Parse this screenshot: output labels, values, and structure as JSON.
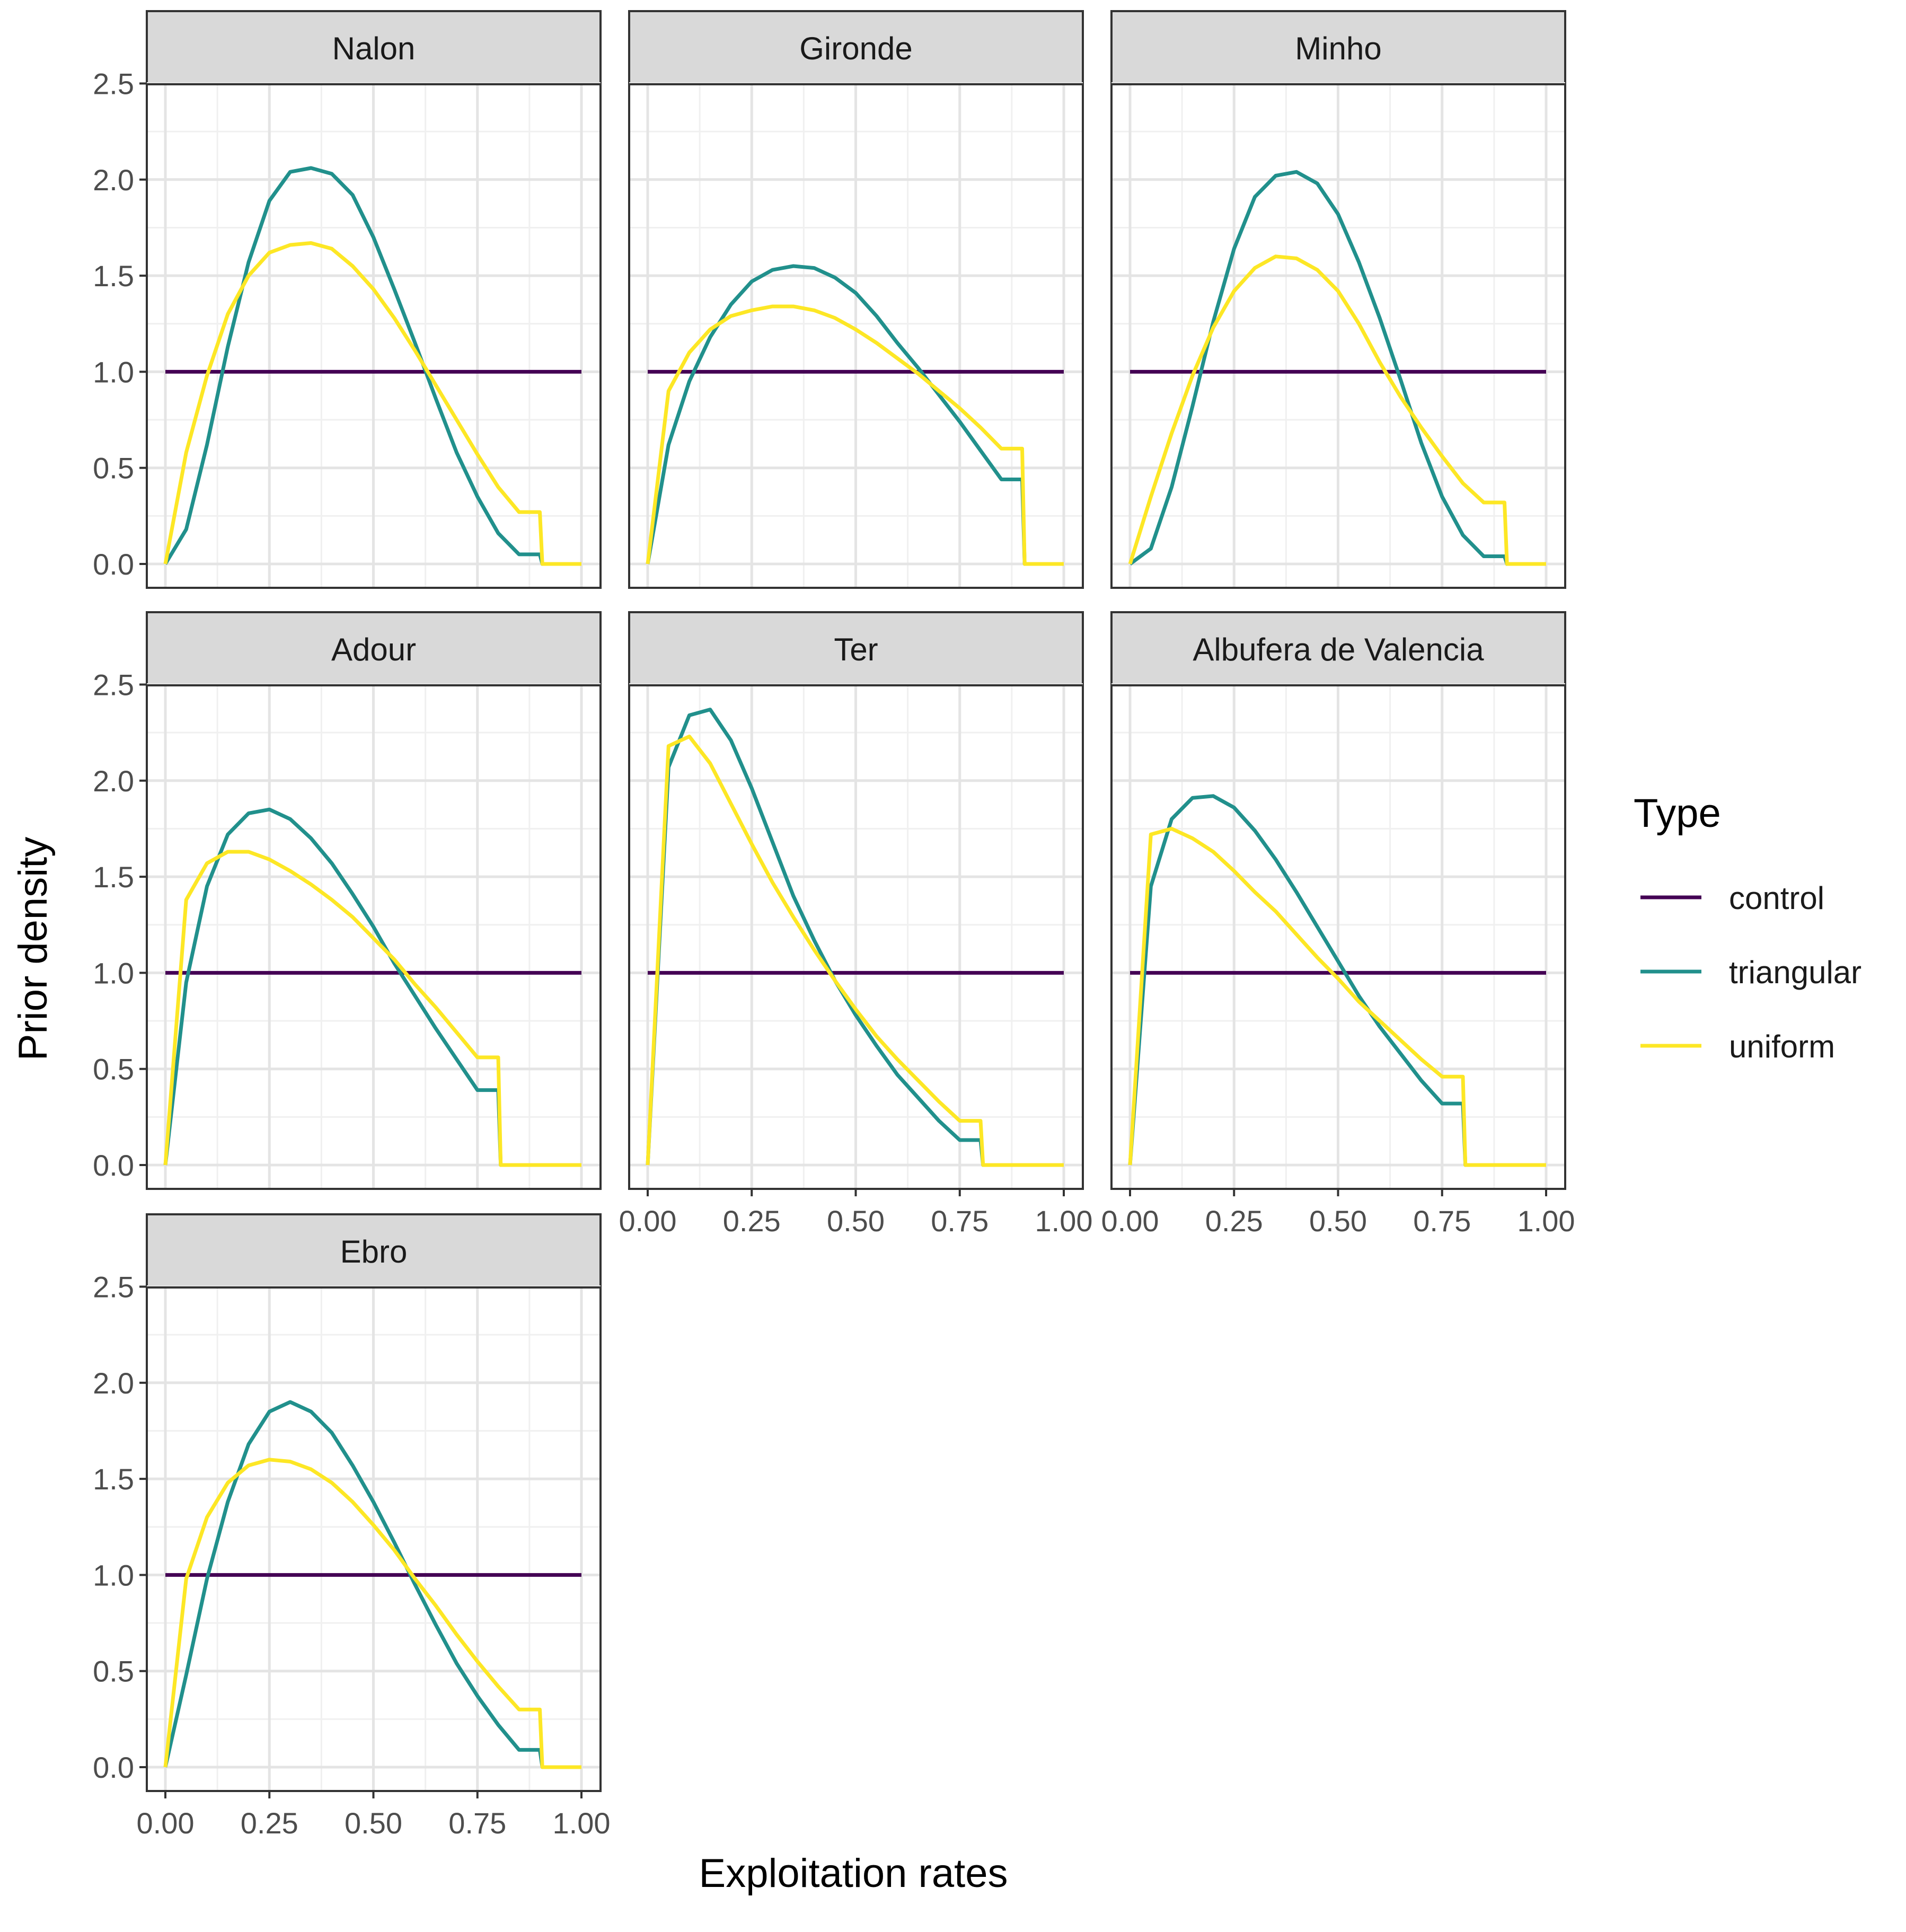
{
  "chart_data": {
    "type": "line",
    "xlabel": "Exploitation rates",
    "ylabel": "Prior density",
    "xlim": [
      0,
      1
    ],
    "ylim": [
      0,
      2.5
    ],
    "x_ticks": [
      "0.00",
      "0.25",
      "0.50",
      "0.75",
      "1.00"
    ],
    "y_ticks": [
      "0.0",
      "0.5",
      "1.0",
      "1.5",
      "2.0",
      "2.5"
    ],
    "grid": true,
    "legend": {
      "title": "Type",
      "position": "right",
      "entries": [
        "control",
        "triangular",
        "uniform"
      ]
    },
    "colors": {
      "control": "#440154",
      "triangular": "#21908C",
      "uniform": "#FDE725"
    },
    "x": [
      0,
      0.05,
      0.1,
      0.15,
      0.2,
      0.25,
      0.3,
      0.35,
      0.4,
      0.45,
      0.5,
      0.55,
      0.6,
      0.65,
      0.7,
      0.75,
      0.8,
      0.85,
      0.9,
      0.95,
      1.0
    ],
    "panels": [
      {
        "title": "Nalon",
        "cutoff": 0.9,
        "series": [
          {
            "name": "control",
            "values": [
              1,
              1,
              1,
              1,
              1,
              1,
              1,
              1,
              1,
              1,
              1,
              1,
              1,
              1,
              1,
              1,
              1,
              1,
              1,
              1,
              1
            ]
          },
          {
            "name": "triangular",
            "values": [
              0,
              0.18,
              0.62,
              1.13,
              1.57,
              1.89,
              2.04,
              2.06,
              2.03,
              1.92,
              1.7,
              1.43,
              1.15,
              0.86,
              0.58,
              0.35,
              0.16,
              0.05,
              0.01,
              0,
              0
            ]
          },
          {
            "name": "uniform",
            "values": [
              0,
              0.58,
              0.98,
              1.3,
              1.5,
              1.62,
              1.66,
              1.67,
              1.64,
              1.55,
              1.43,
              1.28,
              1.11,
              0.93,
              0.75,
              0.57,
              0.4,
              0.27,
              0.15,
              0,
              0
            ]
          }
        ]
      },
      {
        "title": "Gironde",
        "cutoff": 0.9,
        "series": [
          {
            "name": "control",
            "values": [
              1,
              1,
              1,
              1,
              1,
              1,
              1,
              1,
              1,
              1,
              1,
              1,
              1,
              1,
              1,
              1,
              1,
              1,
              1,
              1,
              1
            ]
          },
          {
            "name": "triangular",
            "values": [
              0,
              0.62,
              0.95,
              1.18,
              1.35,
              1.47,
              1.53,
              1.55,
              1.54,
              1.49,
              1.41,
              1.29,
              1.15,
              1.02,
              0.88,
              0.74,
              0.59,
              0.44,
              0.28,
              0,
              0
            ]
          },
          {
            "name": "uniform",
            "values": [
              0,
              0.9,
              1.1,
              1.22,
              1.29,
              1.32,
              1.34,
              1.34,
              1.32,
              1.28,
              1.22,
              1.15,
              1.07,
              0.99,
              0.9,
              0.81,
              0.71,
              0.6,
              0.48,
              0,
              0
            ]
          }
        ]
      },
      {
        "title": "Minho",
        "cutoff": 0.9,
        "series": [
          {
            "name": "control",
            "values": [
              1,
              1,
              1,
              1,
              1,
              1,
              1,
              1,
              1,
              1,
              1,
              1,
              1,
              1,
              1,
              1,
              1,
              1,
              1,
              1,
              1
            ]
          },
          {
            "name": "triangular",
            "values": [
              0,
              0.08,
              0.4,
              0.82,
              1.26,
              1.64,
              1.91,
              2.02,
              2.04,
              1.98,
              1.82,
              1.57,
              1.28,
              0.96,
              0.63,
              0.35,
              0.15,
              0.04,
              0.01,
              0,
              0
            ]
          },
          {
            "name": "uniform",
            "values": [
              0,
              0.35,
              0.68,
              0.98,
              1.23,
              1.42,
              1.54,
              1.6,
              1.59,
              1.53,
              1.42,
              1.25,
              1.05,
              0.87,
              0.71,
              0.56,
              0.42,
              0.32,
              0.26,
              0,
              0
            ]
          }
        ]
      },
      {
        "title": "Adour",
        "cutoff": 0.8,
        "series": [
          {
            "name": "control",
            "values": [
              1,
              1,
              1,
              1,
              1,
              1,
              1,
              1,
              1,
              1,
              1,
              1,
              1,
              1,
              1,
              1,
              1,
              1,
              1,
              1,
              1
            ]
          },
          {
            "name": "triangular",
            "values": [
              0,
              0.95,
              1.45,
              1.72,
              1.83,
              1.85,
              1.8,
              1.7,
              1.57,
              1.41,
              1.24,
              1.05,
              0.88,
              0.71,
              0.55,
              0.39,
              0.25,
              0,
              0,
              0,
              0
            ]
          },
          {
            "name": "uniform",
            "values": [
              0,
              1.38,
              1.57,
              1.63,
              1.63,
              1.59,
              1.53,
              1.46,
              1.38,
              1.29,
              1.18,
              1.07,
              0.94,
              0.82,
              0.69,
              0.56,
              0.42,
              0,
              0,
              0,
              0
            ]
          }
        ]
      },
      {
        "title": "Ter",
        "cutoff": 0.8,
        "series": [
          {
            "name": "control",
            "values": [
              1,
              1,
              1,
              1,
              1,
              1,
              1,
              1,
              1,
              1,
              1,
              1,
              1,
              1,
              1,
              1,
              1,
              1,
              1,
              1,
              1
            ]
          },
          {
            "name": "triangular",
            "values": [
              0,
              2.07,
              2.34,
              2.37,
              2.21,
              1.96,
              1.68,
              1.4,
              1.17,
              0.96,
              0.78,
              0.62,
              0.47,
              0.35,
              0.23,
              0.13,
              0.05,
              0,
              0,
              0,
              0
            ]
          },
          {
            "name": "uniform",
            "values": [
              0,
              2.18,
              2.23,
              2.09,
              1.88,
              1.67,
              1.47,
              1.29,
              1.12,
              0.96,
              0.81,
              0.67,
              0.55,
              0.44,
              0.33,
              0.23,
              0.14,
              0,
              0,
              0,
              0
            ]
          }
        ]
      },
      {
        "title": "Albufera de Valencia",
        "cutoff": 0.8,
        "series": [
          {
            "name": "control",
            "values": [
              1,
              1,
              1,
              1,
              1,
              1,
              1,
              1,
              1,
              1,
              1,
              1,
              1,
              1,
              1,
              1,
              1,
              1,
              1,
              1,
              1
            ]
          },
          {
            "name": "triangular",
            "values": [
              0,
              1.45,
              1.8,
              1.91,
              1.92,
              1.86,
              1.74,
              1.59,
              1.42,
              1.24,
              1.06,
              0.88,
              0.72,
              0.58,
              0.44,
              0.32,
              0.2,
              0,
              0,
              0,
              0
            ]
          },
          {
            "name": "uniform",
            "values": [
              0,
              1.72,
              1.75,
              1.7,
              1.63,
              1.53,
              1.42,
              1.32,
              1.2,
              1.08,
              0.97,
              0.85,
              0.75,
              0.65,
              0.55,
              0.46,
              0.37,
              0,
              0,
              0,
              0
            ]
          }
        ]
      },
      {
        "title": "Ebro",
        "cutoff": 0.9,
        "series": [
          {
            "name": "control",
            "values": [
              1,
              1,
              1,
              1,
              1,
              1,
              1,
              1,
              1,
              1,
              1,
              1,
              1,
              1,
              1,
              1,
              1,
              1,
              1,
              1,
              1
            ]
          },
          {
            "name": "triangular",
            "values": [
              0,
              0.48,
              0.98,
              1.38,
              1.68,
              1.85,
              1.9,
              1.85,
              1.74,
              1.57,
              1.38,
              1.17,
              0.95,
              0.74,
              0.54,
              0.37,
              0.22,
              0.09,
              0.01,
              0,
              0
            ]
          },
          {
            "name": "uniform",
            "values": [
              0,
              0.98,
              1.3,
              1.48,
              1.57,
              1.6,
              1.59,
              1.55,
              1.48,
              1.38,
              1.26,
              1.13,
              0.98,
              0.84,
              0.69,
              0.55,
              0.42,
              0.3,
              0.19,
              0,
              0
            ]
          }
        ]
      }
    ]
  }
}
